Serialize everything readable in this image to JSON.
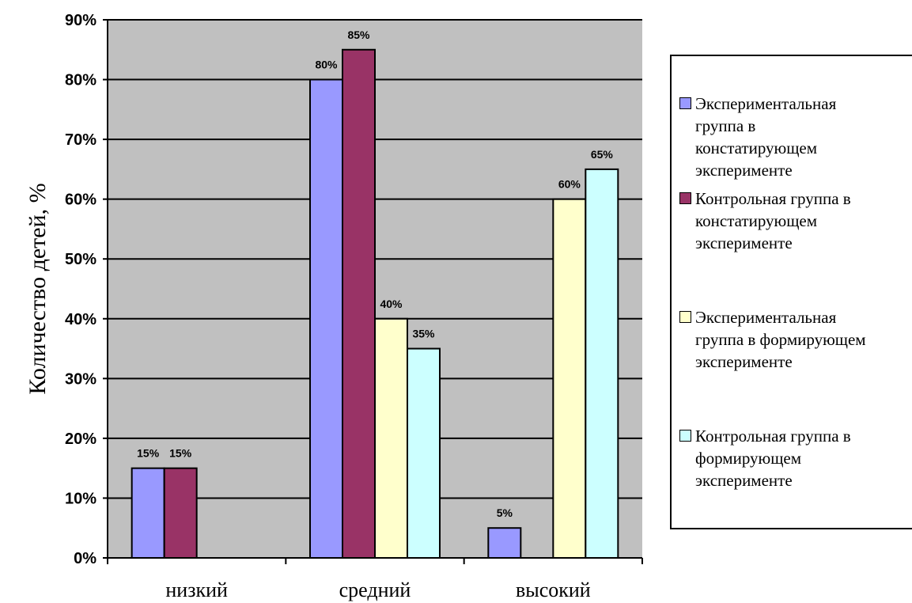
{
  "chart_data": {
    "type": "bar",
    "categories": [
      "низкий",
      "средний",
      "высокий"
    ],
    "ylabel": "Количество детей, %",
    "xlabel": "",
    "ylim": [
      0,
      90
    ],
    "yticks": [
      "0%",
      "10%",
      "20%",
      "30%",
      "40%",
      "50%",
      "60%",
      "70%",
      "80%",
      "90%"
    ],
    "grid": true,
    "legend_position": "right",
    "series": [
      {
        "name": "Экспериментальная группа в констатирующем эксперименте",
        "color": "#9999ff",
        "values": [
          15,
          80,
          5
        ],
        "labels": [
          "15%",
          "80%",
          "5%"
        ]
      },
      {
        "name": "Контрольная группа в констатирующем эксперименте",
        "color": "#993366",
        "values": [
          15,
          85,
          null
        ],
        "labels": [
          "15%",
          "85%",
          ""
        ]
      },
      {
        "name": "Экспериментальная группа в формирующем эксперименте",
        "color": "#ffffcc",
        "values": [
          null,
          40,
          60
        ],
        "labels": [
          "",
          "40%",
          "60%"
        ]
      },
      {
        "name": "Контрольная группа в формирующем эксперименте",
        "color": "#ccffff",
        "values": [
          null,
          35,
          65
        ],
        "labels": [
          "",
          "35%",
          "65%"
        ]
      }
    ]
  },
  "legend": {
    "items": [
      "Экспериментальная\nгруппа в\nконстатирующем\nэксперименте",
      "Контрольная группа в\nконстатирующем\nэксперименте",
      "Экспериментальная\nгруппа в формирующем\nэксперименте",
      "Контрольная группа в\nформирующем\nэксперименте"
    ]
  }
}
